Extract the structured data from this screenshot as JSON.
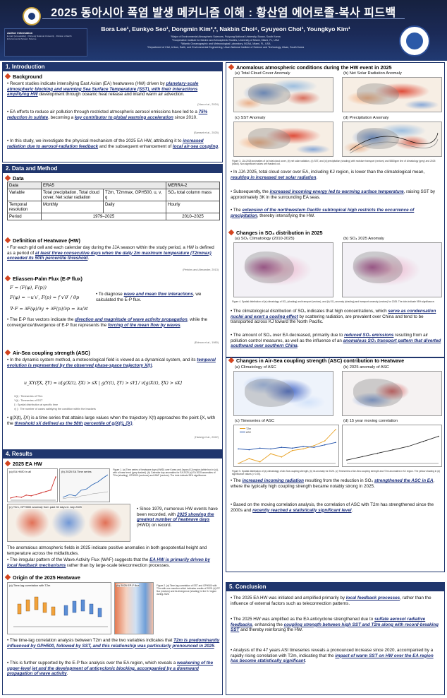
{
  "header": {
    "title": "2025 동아시아 폭염 발생 메커니즘 이해 : 황산염 에어로졸-복사 피드백",
    "authors": "Bora Lee¹, Eunkyo Seo¹, Dongmin Kim²,³, Nakbin Choi⁴, Gyuyeon Choi¹, Youngkyo Kim¹",
    "affiliations": [
      "¹Major of Environmental Atmospheric Sciences, Pukyong National University, Busan, South Korea",
      "²Cooperative Institute for Marine and Atmospheric Studies, University of Miami, Miami, FL, USA",
      "³Atlantic Oceanographic and Meteorological Laboratory, NOAA, Miami, FL, USA",
      "⁴Department of Civil, Urban, Earth, and Environmental Engineering, Ulsan National Institute of Science and Technology, Ulsan, South Korea"
    ],
    "info_title": "Author Information",
    "info_text": "E-mail: [unreadable] · Pukyong National University · Division of Earth Environmental System Science"
  },
  "introduction": {
    "section": "1. Introduction",
    "background_title": "Background",
    "p1": [
      {
        "t": "Recent studies indicate intensifying East Asian (EA) heatwaves (HW) driven by "
      },
      {
        "t": "planetary-scale atmospheric blocking and warming Sea Surface Temperature (SST), with their interactions amplifying HW",
        "hl": true
      },
      {
        "t": " development through oceanic heat release and inland warm air advection."
      }
    ],
    "c1": "(Xiao et al., 2024)",
    "p2": [
      {
        "t": "EA efforts to reduce air pollution through restricted atmospheric aerosol emissions have led to a "
      },
      {
        "t": "75% reduction in sulfate",
        "hl": true
      },
      {
        "t": ", becoming a "
      },
      {
        "t": "key contributor to global warming acceleration",
        "hl": true
      },
      {
        "t": " since 2010."
      }
    ],
    "c2": "(Samset et al., 2025)",
    "p3": [
      {
        "t": "In this study, we investigate the physical mechanism of the 2025 EA HW, attributing it to "
      },
      {
        "t": "increased radiation due to aerosol-radiation feedback",
        "hl": true
      },
      {
        "t": " and the subsequent enhancement of "
      },
      {
        "t": "local air-sea coupling",
        "hl": true
      },
      {
        "t": "."
      }
    ]
  },
  "data_method": {
    "section": "2. Data and Method",
    "data_title": "Data",
    "table": {
      "h_data": "Data",
      "h_era5": "ERA5",
      "h_merra": "MERRA-2",
      "r_var": "Variable",
      "era5_var_a": "Total precipitation, Total cloud cover, Net solar radiation",
      "era5_var_b": "T2m, T2mmax, GPH500, u, v, q",
      "merra_var": "SO₄ total column mass",
      "r_res": "Temporal resolution",
      "era5_res_a": "Monthly",
      "era5_res_b": "Daily",
      "merra_res": "Hourly",
      "r_period": "Period",
      "era5_period": "1979–2025",
      "merra_period": "2010–2025"
    },
    "hw_title": "Definition of Heatwave (HW)",
    "hw_text": [
      {
        "t": "For each grid cell and each calendar day during the JJA season within the study period, a HW is defined as a period of "
      },
      {
        "t": "at least three consecutive days when the daily 2m maximum temperature (T2mmax) exceeded its 90th percentile threshold",
        "hl": true
      },
      {
        "t": "."
      }
    ],
    "hw_cite": "(Perkins and Alexander, 2013)",
    "ep_title": "Eliassen-Palm Flux (E-P flux)",
    "ep_eq1": "F = (F(φ), F(p))",
    "ep_eq2": "F(φ) = −u′v′,   F(p) = f v′θ′ / θp",
    "ep_eq3": "∇·F = ∂F(φ)/∂y + ∂F(p)/∂p = ∂u/∂t",
    "ep_side": [
      {
        "t": "To diagnose "
      },
      {
        "t": "wave and mean flow interactions",
        "hl": true
      },
      {
        "t": ", we calculated the E-P flux."
      }
    ],
    "ep_text": [
      {
        "t": "The E-P flux vectors indicate the "
      },
      {
        "t": "direction and magnitude of wave activity propagation",
        "hl": true
      },
      {
        "t": ", while the convergence/divergence of E-P flux represents the "
      },
      {
        "t": "forcing of the mean flow by waves",
        "hl": true
      },
      {
        "t": "."
      }
    ],
    "ep_cite": "(Edmon et al., 1980)",
    "asc_title": "Air-Sea coupling strength (ASC)",
    "asc_text": [
      {
        "t": "In the dynamic system method, a meteorological field is viewed as a dynamical system, and its "
      },
      {
        "t": "temporal evolution is represented by the observed phase-space trajectory X(t)",
        "hl": true
      },
      {
        "t": "."
      }
    ],
    "asc_eq": "u_XY(ξX, ξY) = ν[g(X(t), ξX) > sX | g(Y(t), ξY) > sY] / ν[g(X(t), ξX) > sX]",
    "asc_notes": [
      "X(t) : Timeseries of T2m",
      "Y(t) : Timeseries of SST",
      "ξ : Spatial distribution at specific time",
      "ν[ ] : The number of cases satisfying the condition within the brackets"
    ],
    "asc_text2": [
      {
        "t": "g(X(t), ξX) is a time series that attains large values when the trajectory X(t) approaches the point ξX, with the "
      },
      {
        "t": "threshold sX defined as the 98th percentile of g(X(t), ξX)",
        "hl": true
      },
      {
        "t": "."
      }
    ],
    "asc_cite": "(Hwang et al., 2022)"
  },
  "results_left": {
    "section": "4. Results",
    "hw_title": "2025 EA HW",
    "fig_a": "(a) EA HWD in all",
    "fig_b": "(b) 2025 EA Time series",
    "fig_c": "(c) T2m, GPH500 anomaly from past 30 days in July 2025",
    "fig1_cap": "Figure 1. (a) Time series of heatwave days (HWD) over Korea and Japan (KJ) region (white box in (c)), with a linear trend (grey dashed). (b) Calendar day anomalies for EA 2025 (c) EA 2025 anomalies of T2m (shading), GPH500 (contours) and WAF (vectors). The dots indicate 95% significance.",
    "side_text": [
      {
        "t": "Since 1979, numerous HW events have been recorded, with "
      },
      {
        "t": "2025 showing the greatest number of heatwave days",
        "hl": true
      },
      {
        "t": " (HWD) on record."
      }
    ],
    "p1": "The anomalous atmospheric fields in 2025 indicate positive anomalies in both geopotential height and temperature across the midlatitudes.",
    "p2": [
      {
        "t": "The irregular pattern of the Wave Activity Flux (WAF) suggests that the "
      },
      {
        "t": "EA HW is primarily driven by local feedback mechanisms",
        "hl": true
      },
      {
        "t": " rather than by large-scale teleconnection processes."
      }
    ],
    "origin_title": "Origin of the 2025 Heatwave",
    "fig_d": "(a) Time-lag correlation with T2m",
    "fig_e": "(b) 2025 EP-F flux",
    "fig2_cap": "Figure 2. (a) Time-lag correlation of SST and GPH500 with T2m with one member which indicates results of 2025. (b) EP flux (vectors) and its divergence (shading) in the KJ region during 2025.",
    "p3": [
      {
        "t": "The time-lag correlation analysis between T2m and the two variables indicates that "
      },
      {
        "t": "T2m is predominantly influenced by GPH500, followed by SST, and this relationship was particularly pronounced in 2025",
        "hl": true
      },
      {
        "t": "."
      }
    ],
    "p4": [
      {
        "t": "This is further supported by the E-P flux analysis over the EA region, which reveals a "
      },
      {
        "t": "weakening of the upper-level jet and the development of anticyclonic blocking, accompanied by a downward propagation of wave activity",
        "hl": true
      },
      {
        "t": "."
      }
    ]
  },
  "results_right": {
    "anom_title": "Anomalous atmospheric conditions during the HW event in 2025",
    "fig_a": "(a) Total Cloud Cover Anomaly",
    "fig_b": "(b) Net Solar Radiation Anomaly",
    "fig_c": "(c) SST Anomaly",
    "fig_d": "(d) Precipitation Anomaly",
    "fig3_cap": "Figure 3. JJA 2025 anomalies of (a) total cloud cover, (b) net solar radiation, (c) SST, and (d) precipitation (shading) with moisture transport (vectors) and 5880gpm line of climatology (grey) and 2025 (black). Non-significant values are masked out.",
    "p1": [
      {
        "t": "In JJA 2025, total cloud cover over EA, including KJ region, is lower than the climatological mean, "
      },
      {
        "t": "resulting in increased net solar radiation",
        "hl": true
      },
      {
        "t": "."
      }
    ],
    "p2": [
      {
        "t": "Subsequently, the "
      },
      {
        "t": "increased incoming energy led to warming surface temperature",
        "hl": true
      },
      {
        "t": ", raising SST by approximately 3K in the surrounding EA seas."
      }
    ],
    "p3": [
      {
        "t": "The "
      },
      {
        "t": "extension of the northwestern Pacific subtropical high restricts the occurrence of precipitation",
        "hl": true
      },
      {
        "t": ", thereby intensifying the HW."
      }
    ],
    "so4_title": "Changes in SO₄ distribution in 2025",
    "fig_so4_a": "(a) SO₄ Climatology (2010-2025)",
    "fig_so4_b": "(b) SO₄ 2025 Anomaly",
    "fig4_cap": "Figure 4. Spatial distribution of (a) climatology of SO₄ (shading) and transport (vectors), and (b) SO₄ anomaly (shading) and transport anomaly (vectors) for 2025. The dots indicate 95% significance.",
    "p4": [
      {
        "t": "The climatological distribution of SO₄ indicates that high concentrations, which "
      },
      {
        "t": "serve as condensation nuclei and exert a cooling effect",
        "hl": true
      },
      {
        "t": " by scattering radiation, are prevalent over China and tend to be transported across KJ toward the North Pacific."
      }
    ],
    "p5": [
      {
        "t": "The amount of SO₄ over EA decreased, primarily due to "
      },
      {
        "t": "reduced SO₂ emissions",
        "hl": true
      },
      {
        "t": " resulting from air pollution control measures, as well as the influence of an "
      },
      {
        "t": "anomalous SO₄ transport pattern that diverted southward over southern China",
        "hl": true
      },
      {
        "t": "."
      }
    ],
    "asc_title": "Changes in Air-Sea coupling strength (ASC) contribution to Heatwave",
    "fig_asc_a": "(a) Climatology of ASC",
    "fig_asc_b": "(b) 2025 anomaly of ASC",
    "fig_asc_c": "(c) Timeseries of ASC",
    "fig_asc_d": "(d) 15 year moving correlation",
    "legend_t2m": "T2m",
    "legend_asc": "ASC",
    "fig5_cap": "Figure 5. Spatial distribution of (a) climatology of Air-Sea coupling strength, (b) its anomaly for 2025. (c) Timeseries of Air-Sea coupling strength and T2m anomalies in KJ region. The yellow shading in (d) significance values (> 0.05).",
    "p6": [
      {
        "t": "The "
      },
      {
        "t": "increased incoming radiation",
        "hl": true
      },
      {
        "t": " resulting from the reduction in SO₄ "
      },
      {
        "t": "strengthened the ASC in EA",
        "hl": true
      },
      {
        "t": ", where the typically high coupling strength became notably strong in 2025."
      }
    ],
    "p7": [
      {
        "t": "Based on the moving correlation analysis, the correlation of ASC with T2m has strengthened since the 2000s and "
      },
      {
        "t": "recently reached a statistically significant level",
        "hl": true
      },
      {
        "t": "."
      }
    ]
  },
  "conclusion": {
    "section": "5. Conclusion",
    "p1": [
      {
        "t": "The 2025 EA HW was initiated and amplified primarily by "
      },
      {
        "t": "local feedback processes",
        "hl": true
      },
      {
        "t": ", rather than the influence of external factors such as teleconnection patterns."
      }
    ],
    "p2": [
      {
        "t": "The 2025 HW was amplified as the EA anticyclone strengthened due to "
      },
      {
        "t": "sulfate aerosol radiative feedbacks",
        "hl": true
      },
      {
        "t": ", enhancing the "
      },
      {
        "t": "coupling strength between high SST and T2m along with record-breaking SST",
        "hl": true
      },
      {
        "t": " and thereby reinforcing the HW."
      }
    ],
    "p3": [
      {
        "t": "Analysis of the 47 years ASI timeseries reveals a pronounced increase since 2020, accompanied by a rapidly rising correlation with T2m, indicating that the "
      },
      {
        "t": "impact of warm SST on HW over the EA region has become statistically significant",
        "hl": true
      },
      {
        "t": "."
      }
    ]
  },
  "chart_data": [
    {
      "type": "line",
      "title": "(a) EA HWD in all",
      "x": [
        1979,
        1985,
        1990,
        1995,
        2000,
        2005,
        2010,
        2015,
        2020,
        2025
      ],
      "series": [
        {
          "values": [
            3,
            5,
            4,
            7,
            6,
            8,
            10,
            12,
            14,
            32
          ]
        }
      ],
      "ylim": [
        0,
        35
      ]
    },
    {
      "type": "line",
      "title": "(c) Timeseries of ASC",
      "x": [
        1980,
        1985,
        1990,
        1995,
        2000,
        2005,
        2010,
        2015,
        2020,
        2025
      ],
      "series": [
        {
          "name": "T2m",
          "values": [
            -0.6,
            -0.3,
            -0.5,
            0.0,
            -0.2,
            0.2,
            0.3,
            0.5,
            0.8,
            1.5
          ]
        },
        {
          "name": "ASC",
          "values": [
            0.3,
            0.25,
            0.35,
            0.3,
            0.4,
            0.35,
            0.45,
            0.4,
            0.55,
            0.7
          ]
        }
      ]
    },
    {
      "type": "line",
      "title": "(d) 15 year moving correlation",
      "x": [
        1990,
        1995,
        2000,
        2005,
        2010,
        2015,
        2020
      ],
      "series": [
        {
          "values": [
            -0.1,
            0.0,
            0.1,
            0.2,
            0.3,
            0.45,
            0.6
          ]
        }
      ],
      "ylim": [
        -0.2,
        0.8
      ]
    }
  ]
}
